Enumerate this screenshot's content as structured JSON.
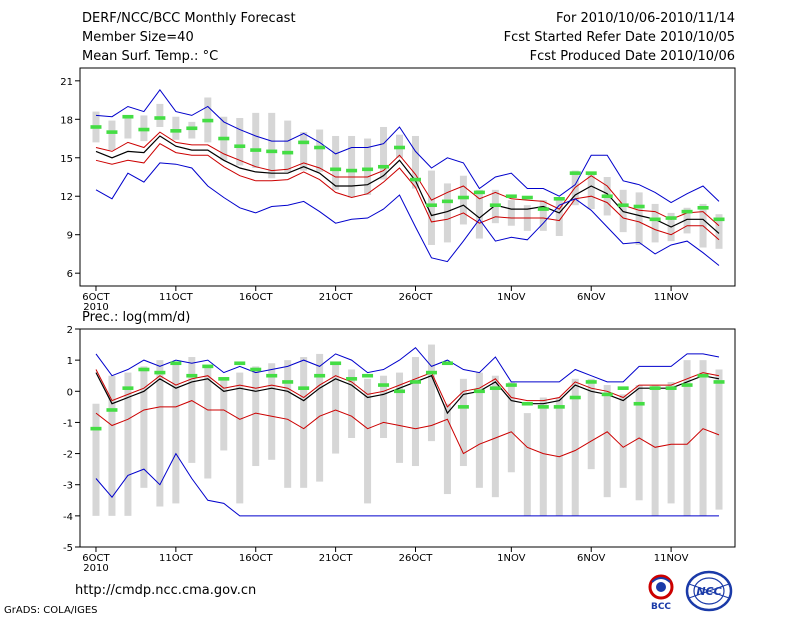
{
  "header": {
    "title": "DERF/NCC/BCC Monthly Forecast",
    "member_size": "Member Size=40",
    "variable": "Mean Surf. Temp.: °C",
    "period": "For 2010/10/06-2010/11/14",
    "start_ref": "Fcst Started Refer Date 2010/10/05",
    "produced": "Fcst Produced Date 2010/10/06"
  },
  "footer": {
    "url": "http://cmdp.ncc.cma.gov.cn",
    "credit": "GrADS: COLA/IGES",
    "logo1": "BCC",
    "logo2": "NCC"
  },
  "colors": {
    "blue": "#0000cc",
    "red": "#cc0000",
    "mean": "#000000",
    "box": "#d6d6d6",
    "green": "#44dd44"
  },
  "chart_data": [
    {
      "type": "line",
      "title": "Mean Surf. Temp.: °C",
      "x_tick_labels": [
        "6OCT",
        "11OCT",
        "16OCT",
        "21OCT",
        "26OCT",
        "1NOV",
        "6NOV",
        "11NOV"
      ],
      "x_tick_days": [
        1,
        6,
        11,
        16,
        21,
        27,
        32,
        37
      ],
      "x_year_label": "2010",
      "x_range": [
        0,
        41
      ],
      "ylim": [
        5,
        22
      ],
      "yticks": [
        6,
        9,
        12,
        15,
        18,
        21
      ],
      "days": [
        1,
        2,
        3,
        4,
        5,
        6,
        7,
        8,
        9,
        10,
        11,
        12,
        13,
        14,
        15,
        16,
        17,
        18,
        19,
        20,
        21,
        22,
        23,
        24,
        25,
        26,
        27,
        28,
        29,
        30,
        31,
        32,
        33,
        34,
        35,
        36,
        37,
        38,
        39,
        40
      ],
      "series": [
        {
          "name": "ensemble max",
          "color": "blue",
          "values": [
            18.3,
            18.2,
            19.0,
            18.6,
            20.3,
            18.6,
            18.3,
            19.0,
            17.8,
            17.2,
            16.7,
            16.3,
            16.3,
            16.9,
            16.2,
            15.3,
            15.8,
            15.8,
            16.1,
            17.4,
            15.5,
            14.2,
            15.0,
            14.6,
            12.6,
            13.5,
            13.8,
            12.6,
            12.6,
            12.0,
            12.9,
            15.2,
            15.2,
            13.2,
            12.9,
            12.3,
            11.5,
            12.2,
            12.8,
            11.6
          ]
        },
        {
          "name": "upper bound",
          "color": "red",
          "values": [
            15.8,
            15.5,
            16.2,
            15.8,
            17.0,
            16.2,
            16.0,
            16.0,
            15.3,
            14.8,
            14.3,
            14.0,
            14.1,
            14.6,
            14.2,
            13.5,
            13.5,
            13.5,
            14.0,
            15.2,
            13.7,
            11.7,
            12.3,
            12.8,
            11.8,
            12.3,
            11.8,
            11.7,
            11.6,
            11.0,
            12.7,
            13.6,
            12.8,
            11.3,
            10.9,
            10.8,
            10.2,
            10.7,
            10.8,
            9.7
          ]
        },
        {
          "name": "ensemble mean",
          "color": "mean",
          "values": [
            15.5,
            15.0,
            15.5,
            15.4,
            16.7,
            15.9,
            15.6,
            15.6,
            14.8,
            14.2,
            13.9,
            13.8,
            13.8,
            14.3,
            13.8,
            12.8,
            12.8,
            12.9,
            13.6,
            14.8,
            13.2,
            10.5,
            10.8,
            11.3,
            10.3,
            11.3,
            11.0,
            11.0,
            11.2,
            10.7,
            12.1,
            12.8,
            12.2,
            10.8,
            10.5,
            10.2,
            9.6,
            10.2,
            10.2,
            9.1
          ]
        },
        {
          "name": "lower bound",
          "color": "red",
          "values": [
            14.8,
            14.5,
            14.8,
            14.6,
            16.1,
            15.4,
            15.2,
            15.2,
            14.3,
            13.6,
            13.2,
            13.2,
            13.3,
            13.9,
            13.3,
            12.3,
            11.9,
            12.2,
            13.1,
            14.2,
            12.7,
            10.0,
            10.2,
            10.7,
            9.9,
            10.4,
            10.3,
            10.3,
            10.3,
            10.1,
            11.8,
            12.0,
            11.5,
            10.3,
            10.0,
            9.4,
            9.0,
            9.7,
            9.7,
            8.6
          ]
        },
        {
          "name": "ensemble min",
          "color": "blue",
          "values": [
            12.5,
            11.8,
            13.8,
            13.1,
            14.6,
            14.5,
            14.2,
            12.8,
            11.9,
            11.1,
            10.7,
            11.2,
            11.3,
            11.6,
            10.8,
            9.9,
            10.2,
            10.3,
            11.0,
            12.1,
            9.6,
            7.2,
            6.9,
            8.5,
            10.2,
            8.5,
            8.8,
            8.6,
            9.9,
            11.3,
            11.8,
            10.9,
            9.6,
            8.3,
            8.4,
            7.5,
            8.2,
            8.5,
            7.6,
            6.6
          ]
        }
      ],
      "box_low": [
        16.2,
        15.6,
        16.5,
        16.3,
        17.4,
        16.4,
        16.5,
        16.2,
        14.8,
        14.4,
        14.2,
        13.4,
        13.9,
        14.0,
        13.9,
        12.5,
        11.9,
        12.1,
        13.3,
        15.0,
        12.6,
        8.2,
        8.4,
        9.8,
        8.7,
        9.9,
        9.7,
        9.3,
        9.3,
        8.9,
        11.3,
        11.0,
        10.5,
        9.2,
        8.2,
        8.4,
        8.5,
        9.1,
        8.0,
        7.9
      ],
      "box_high": [
        18.6,
        17.9,
        18.3,
        18.3,
        19.2,
        18.2,
        17.8,
        19.7,
        18.2,
        18.1,
        18.5,
        18.5,
        17.9,
        17.0,
        17.2,
        16.7,
        16.7,
        16.5,
        17.4,
        16.8,
        16.7,
        14.0,
        13.0,
        13.6,
        12.5,
        12.5,
        11.7,
        11.3,
        11.7,
        11.8,
        14.0,
        13.9,
        13.5,
        12.5,
        12.3,
        11.4,
        10.7,
        11.1,
        11.4,
        10.6
      ],
      "green_marks": [
        17.4,
        17.0,
        18.2,
        17.2,
        18.1,
        17.1,
        17.3,
        17.9,
        16.5,
        15.9,
        15.6,
        15.5,
        15.4,
        16.2,
        15.8,
        14.1,
        14.0,
        14.1,
        14.3,
        15.8,
        13.3,
        11.3,
        11.6,
        11.9,
        12.3,
        11.3,
        12.0,
        11.9,
        11.0,
        11.8,
        13.8,
        13.8,
        12.0,
        11.3,
        11.2,
        10.2,
        10.3,
        10.8,
        11.1,
        10.2
      ]
    },
    {
      "type": "line",
      "title": "Prec.: log(mm/d)",
      "x_tick_labels": [
        "6OCT",
        "11OCT",
        "16OCT",
        "21OCT",
        "26OCT",
        "1NOV",
        "6NOV",
        "11NOV"
      ],
      "x_tick_days": [
        1,
        6,
        11,
        16,
        21,
        27,
        32,
        37
      ],
      "x_year_label": "2010",
      "x_range": [
        0,
        41
      ],
      "ylim": [
        -5,
        2
      ],
      "yticks": [
        -5,
        -4,
        -3,
        -2,
        -1,
        0,
        1,
        2
      ],
      "days": [
        1,
        2,
        3,
        4,
        5,
        6,
        7,
        8,
        9,
        10,
        11,
        12,
        13,
        14,
        15,
        16,
        17,
        18,
        19,
        20,
        21,
        22,
        23,
        24,
        25,
        26,
        27,
        28,
        29,
        30,
        31,
        32,
        33,
        34,
        35,
        36,
        37,
        38,
        39,
        40
      ],
      "series": [
        {
          "name": "ensemble max",
          "color": "blue",
          "values": [
            1.2,
            0.5,
            0.7,
            1.0,
            0.8,
            1.0,
            0.9,
            1.0,
            0.6,
            0.8,
            0.6,
            0.7,
            0.8,
            1.0,
            0.8,
            1.2,
            1.0,
            0.6,
            0.7,
            1.0,
            1.4,
            0.8,
            1.0,
            0.7,
            0.6,
            1.1,
            0.3,
            0.3,
            0.3,
            0.3,
            0.7,
            0.5,
            0.3,
            0.3,
            0.8,
            0.8,
            0.8,
            1.2,
            1.2,
            1.1
          ]
        },
        {
          "name": "upper bound",
          "color": "red",
          "values": [
            0.7,
            -0.3,
            -0.1,
            0.1,
            0.5,
            0.2,
            0.4,
            0.5,
            0.1,
            0.2,
            0.1,
            0.2,
            0.1,
            -0.2,
            0.2,
            0.5,
            0.3,
            -0.1,
            0.0,
            0.2,
            0.4,
            0.6,
            -0.5,
            0.0,
            0.1,
            0.4,
            -0.2,
            -0.3,
            -0.3,
            -0.2,
            0.3,
            0.1,
            0.0,
            -0.2,
            0.2,
            0.2,
            0.2,
            0.4,
            0.6,
            0.5
          ]
        },
        {
          "name": "ensemble mean",
          "color": "mean",
          "values": [
            0.6,
            -0.4,
            -0.2,
            0.0,
            0.4,
            0.1,
            0.3,
            0.4,
            0.0,
            0.1,
            0.0,
            0.1,
            0.0,
            -0.3,
            0.1,
            0.4,
            0.2,
            -0.2,
            -0.1,
            0.1,
            0.3,
            0.5,
            -0.7,
            -0.1,
            0.0,
            0.3,
            -0.3,
            -0.4,
            -0.4,
            -0.3,
            0.2,
            0.0,
            -0.1,
            -0.3,
            0.1,
            0.1,
            0.1,
            0.3,
            0.5,
            0.4
          ]
        },
        {
          "name": "lower bound",
          "color": "red",
          "values": [
            -0.7,
            -1.1,
            -0.9,
            -0.6,
            -0.5,
            -0.5,
            -0.3,
            -0.6,
            -0.6,
            -0.9,
            -0.7,
            -0.8,
            -0.9,
            -1.2,
            -0.8,
            -0.6,
            -0.8,
            -1.2,
            -1.0,
            -1.1,
            -1.2,
            -1.1,
            -0.9,
            -2.0,
            -1.7,
            -1.5,
            -1.3,
            -1.8,
            -2.0,
            -2.1,
            -1.9,
            -1.6,
            -1.3,
            -1.8,
            -1.5,
            -1.8,
            -1.7,
            -1.7,
            -1.2,
            -1.4
          ]
        },
        {
          "name": "ensemble min",
          "color": "blue",
          "values": [
            -2.8,
            -3.4,
            -2.7,
            -2.5,
            -3.0,
            -2.0,
            -2.8,
            -3.5,
            -3.6,
            -4.0,
            -4.0,
            -4.0,
            -4.0,
            -4.0,
            -4.0,
            -4.0,
            -4.0,
            -4.0,
            -4.0,
            -4.0,
            -4.0,
            -4.0,
            -4.0,
            -4.0,
            -4.0,
            -4.0,
            -4.0,
            -4.0,
            -4.0,
            -4.0,
            -4.0,
            -4.0,
            -4.0,
            -4.0,
            -4.0,
            -4.0,
            -4.0,
            -4.0,
            -4.0,
            -4.0
          ]
        }
      ],
      "box_low": [
        -4.0,
        -4.0,
        -4.0,
        -3.1,
        -3.7,
        -3.6,
        -2.3,
        -2.8,
        -1.9,
        -3.6,
        -2.4,
        -2.2,
        -3.1,
        -3.1,
        -2.9,
        -2.0,
        -1.5,
        -3.6,
        -1.5,
        -2.3,
        -2.4,
        -1.6,
        -3.3,
        -2.4,
        -3.1,
        -3.4,
        -2.6,
        -4.0,
        -4.0,
        -4.0,
        -4.0,
        -2.5,
        -3.4,
        -3.1,
        -3.5,
        -4.0,
        -3.6,
        -4.0,
        -4.0,
        -3.8
      ],
      "box_high": [
        -0.4,
        0.5,
        0.6,
        0.8,
        1.0,
        0.9,
        1.1,
        0.8,
        0.4,
        0.6,
        0.8,
        0.9,
        1.0,
        1.1,
        1.2,
        0.9,
        0.7,
        0.4,
        0.5,
        0.6,
        1.1,
        1.5,
        -0.4,
        0.4,
        0.6,
        0.5,
        0.3,
        -0.7,
        -0.2,
        -0.2,
        0.4,
        0.4,
        0.2,
        -0.1,
        0.2,
        0.2,
        0.3,
        1.0,
        1.0,
        0.7
      ],
      "green_marks": [
        -1.2,
        -0.6,
        0.1,
        0.7,
        0.6,
        0.9,
        0.5,
        0.8,
        0.4,
        0.9,
        0.7,
        0.5,
        0.3,
        0.1,
        0.5,
        0.9,
        0.4,
        0.5,
        0.2,
        0.0,
        0.3,
        0.6,
        0.9,
        -0.5,
        0.0,
        0.1,
        0.2,
        -0.4,
        -0.5,
        -0.5,
        -0.2,
        0.3,
        -0.1,
        0.1,
        -0.4,
        0.1,
        0.1,
        0.2,
        0.5,
        0.3
      ]
    }
  ]
}
